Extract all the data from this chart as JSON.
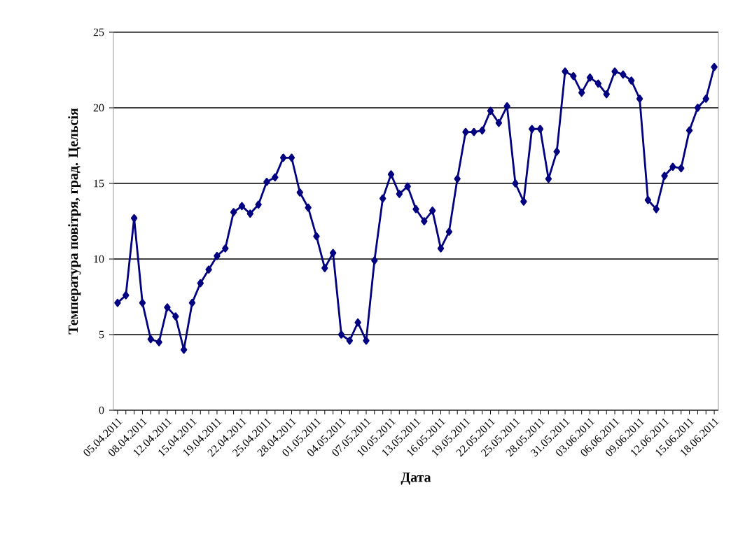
{
  "chart_data": {
    "type": "line",
    "xlabel": "Дата",
    "ylabel": "Температура повітря, град. Цельсія",
    "categories": [
      "05.04.2011",
      null,
      null,
      "08.04.2011",
      null,
      null,
      "12.04.2011",
      null,
      null,
      "15.04.2011",
      null,
      null,
      "19.04.2011",
      null,
      null,
      "22.04.2011",
      null,
      null,
      "25.04.2011",
      null,
      null,
      "28.04.2011",
      null,
      null,
      "01.05.2011",
      null,
      null,
      "04.05.2011",
      null,
      null,
      "07.05.2011",
      null,
      null,
      "10.05.2011",
      null,
      null,
      "13.05.2011",
      null,
      null,
      "16.05.2011",
      null,
      null,
      "19.05.2011",
      null,
      null,
      "22.05.2011",
      null,
      null,
      "25.05.2011",
      null,
      null,
      "28.05.2011",
      null,
      null,
      "31.05.2011",
      null,
      null,
      "03.06.2011",
      null,
      null,
      "06.06.2011",
      null,
      null,
      "09.06.2011",
      null,
      null,
      "12.06.2011",
      null,
      null,
      "15.06.2011",
      null,
      null,
      "18.06.2011"
    ],
    "series": [
      {
        "color": "#000080",
        "values": [
          7.1,
          7.6,
          12.7,
          7.1,
          4.7,
          4.5,
          6.8,
          6.2,
          4.0,
          7.1,
          8.4,
          9.3,
          10.2,
          10.7,
          13.1,
          13.5,
          13.0,
          13.6,
          15.1,
          15.4,
          16.7,
          16.7,
          14.4,
          13.4,
          11.5,
          9.4,
          10.4,
          5.0,
          4.6,
          5.8,
          4.6,
          9.9,
          14.0,
          15.6,
          14.3,
          14.8,
          13.3,
          12.5,
          13.2,
          10.7,
          11.8,
          15.3,
          18.4,
          18.4,
          18.5,
          19.8,
          19.0,
          20.1,
          15.0,
          13.8,
          18.6,
          18.6,
          15.3,
          17.1,
          22.4,
          22.1,
          21.0,
          22.0,
          21.6,
          20.9,
          22.4,
          22.2,
          21.8,
          20.6,
          13.9,
          13.3,
          15.5,
          16.1,
          16.0,
          18.5,
          20.0,
          20.6,
          22.7
        ]
      }
    ],
    "ylim": [
      0,
      25
    ],
    "yticks": [
      0,
      5,
      10,
      15,
      20,
      25
    ],
    "grid": "y",
    "marker": "diamond",
    "line_style": "solid"
  }
}
